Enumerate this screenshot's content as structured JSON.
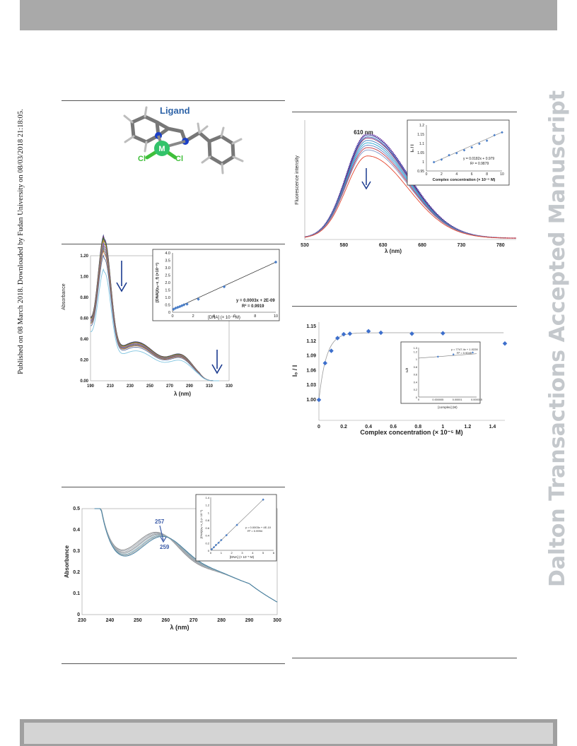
{
  "side_text": "Published on 08 March 2018. Downloaded by Fudan University on 08/03/2018 21:18:05.",
  "watermark": "Dalton Transactions Accepted Manuscript",
  "structure": {
    "ligand_label": "Ligand",
    "metal_label": "M",
    "cl1": "Cl",
    "cl2": "Cl"
  },
  "chart_data": [
    {
      "id": "absorbance-main",
      "type": "line",
      "xlabel": "λ (nm)",
      "ylabel": "Absorbance",
      "xlim": [
        190,
        330
      ],
      "ylim": [
        0,
        1.2
      ],
      "xticks": [
        "190",
        "210",
        "230",
        "250",
        "270",
        "290",
        "310",
        "330"
      ],
      "yticks": [
        "0.00",
        "0.20",
        "0.40",
        "0.60",
        "0.80",
        "1.00",
        "1.20"
      ],
      "peak_nm": 204,
      "peak_values": [
        1.16,
        1.15,
        1.14,
        1.12,
        1.1,
        1.08,
        1.06,
        1.04,
        1.0,
        0.89
      ],
      "inset": {
        "type": "scatter",
        "xlabel": "[DNA] (× 10⁻⁵ M)",
        "ylabel": "[DNA]/(εₐ−ε_f) (×10⁻⁸)",
        "xlim": [
          0,
          10
        ],
        "ylim": [
          0,
          4
        ],
        "xticks": [
          "0",
          "2",
          "4",
          "6",
          "8",
          "10"
        ],
        "yticks": [
          "0",
          "0.5",
          "1.0",
          "1.5",
          "2.0",
          "2.5",
          "3.0",
          "3.5",
          "4.0"
        ],
        "x": [
          0.1,
          0.3,
          0.5,
          0.7,
          0.9,
          1.1,
          1.4,
          2.5,
          5.0,
          10.0
        ],
        "y": [
          0.2,
          0.28,
          0.33,
          0.38,
          0.44,
          0.5,
          0.55,
          0.88,
          1.72,
          3.38
        ],
        "equation": "y = 0.0003x + 2E-09",
        "r2": "R² = 0.9919"
      }
    },
    {
      "id": "absorbance-second",
      "type": "line",
      "xlabel": "λ (nm)",
      "ylabel": "Absorbance",
      "xlim": [
        230,
        300
      ],
      "ylim": [
        0,
        0.5
      ],
      "xticks": [
        "230",
        "240",
        "250",
        "260",
        "270",
        "280",
        "290",
        "300"
      ],
      "yticks": [
        "0",
        "0.1",
        "0.2",
        "0.3",
        "0.4",
        "0.5"
      ],
      "annotation_start": "257",
      "annotation_end": "259",
      "inset": {
        "type": "scatter",
        "xlabel": "[DNA] (× 10⁻⁵ M)",
        "ylabel": "[DNA]/(εₐ−ε_f) (× 10⁻⁸)",
        "xlim": [
          0,
          6
        ],
        "ylim": [
          0,
          1.4
        ],
        "xticks": [
          "0",
          "1",
          "2",
          "3",
          "4",
          "5",
          "6"
        ],
        "yticks": [
          "0",
          "0.2",
          "0.4",
          "0.6",
          "0.8",
          "1",
          "1.2",
          "1.4"
        ],
        "x": [
          0.1,
          0.3,
          0.5,
          0.75,
          1.0,
          1.5,
          2.5,
          5.0
        ],
        "y": [
          0.03,
          0.08,
          0.14,
          0.2,
          0.27,
          0.4,
          0.67,
          1.34
        ],
        "equation": "y = 0.0003x + 4E-10",
        "r2": "R² = 0.9994"
      }
    },
    {
      "id": "fluorescence",
      "type": "line",
      "xlabel": "λ (nm)",
      "ylabel": "Fluorescence intensity",
      "xlim": [
        530,
        800
      ],
      "xticks": [
        "530",
        "580",
        "630",
        "680",
        "730",
        "780"
      ],
      "peak_label": "610 nm",
      "peak_nm": 610,
      "inset": {
        "type": "scatter",
        "xlabel": "Complex concentration (× 10⁻⁵ M)",
        "ylabel": "I₀ / I",
        "xlim": [
          0,
          10
        ],
        "ylim": [
          0.95,
          1.2
        ],
        "xticks": [
          "0",
          "2",
          "4",
          "6",
          "8",
          "10"
        ],
        "yticks": [
          "0.95",
          "1",
          "1.05",
          "1.1",
          "1.15",
          "1.2"
        ],
        "x": [
          1,
          2,
          3,
          4,
          5,
          6,
          7,
          8,
          9,
          10
        ],
        "y": [
          0.998,
          1.012,
          1.036,
          1.047,
          1.063,
          1.078,
          1.098,
          1.115,
          1.145,
          1.16
        ],
        "equation": "y = 0.0182x + 0.979",
        "r2": "R² = 0.9879"
      }
    },
    {
      "id": "quench-ratio",
      "type": "scatter",
      "xlabel": "Complex concentration  (× 10⁻⁵ M)",
      "ylabel": "I₀ / I",
      "xlim": [
        0,
        1.5
      ],
      "ylim": [
        1.0,
        1.15
      ],
      "xticks": [
        "0",
        "0.2",
        "0.4",
        "0.6",
        "0.8",
        "1",
        "1.2",
        "1.4"
      ],
      "yticks": [
        "1.00",
        "1.03",
        "1.06",
        "1.09",
        "1.12",
        "1.15"
      ],
      "x": [
        0,
        0.05,
        0.1,
        0.15,
        0.2,
        0.25,
        0.4,
        0.5,
        0.75,
        1.0,
        1.5
      ],
      "y": [
        1.0,
        1.075,
        1.1,
        1.126,
        1.134,
        1.135,
        1.14,
        1.137,
        1.135,
        1.136,
        1.115
      ],
      "inset": {
        "type": "scatter",
        "xlabel": "[complex] (M)",
        "ylabel": "I₀/I",
        "xlim": [
          0,
          1.5e-05
        ],
        "ylim": [
          0,
          1.3
        ],
        "xticks": [
          "0",
          "0.000005",
          "0.00001",
          "0.000015"
        ],
        "yticks": [
          "0",
          "0.2",
          "0.4",
          "0.6",
          "0.8",
          "1",
          "1.2",
          "1.3"
        ],
        "x": [
          5e-06,
          9e-06,
          1.4e-05
        ],
        "y": [
          1.06,
          1.12,
          1.17
        ],
        "equation": "y = 7747.4x + 1.0228",
        "r2": "R² = 0.9045"
      }
    }
  ]
}
